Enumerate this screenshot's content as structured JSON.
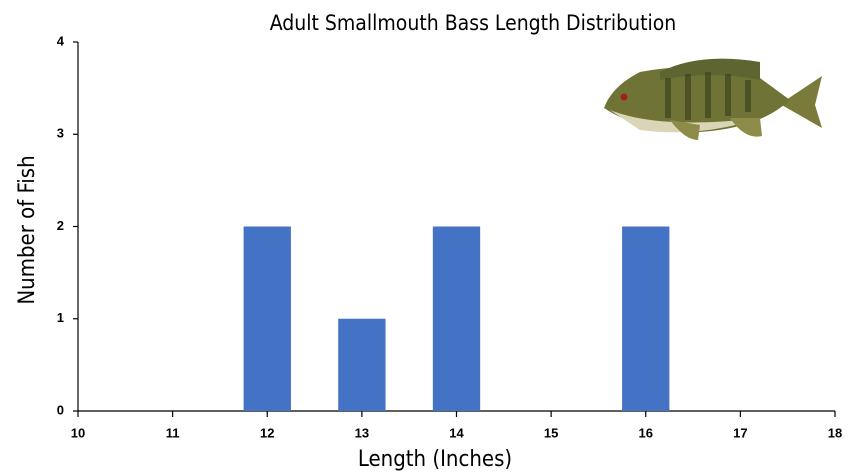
{
  "chart_data": {
    "type": "bar",
    "title": "Adult Smallmouth Bass Length Distribution",
    "x_label": "Length (Inches)",
    "y_label": "Number of Fish",
    "x": [
      12,
      13,
      14,
      16
    ],
    "values": [
      2,
      1,
      2,
      2
    ],
    "color": "#4472c4",
    "xlim": [
      10,
      18
    ],
    "xticks": [
      10,
      11,
      12,
      13,
      14,
      15,
      16,
      17,
      18
    ],
    "ylim": [
      0,
      4
    ],
    "yticks": [
      0,
      1,
      2,
      3,
      4
    ],
    "grid": false
  }
}
